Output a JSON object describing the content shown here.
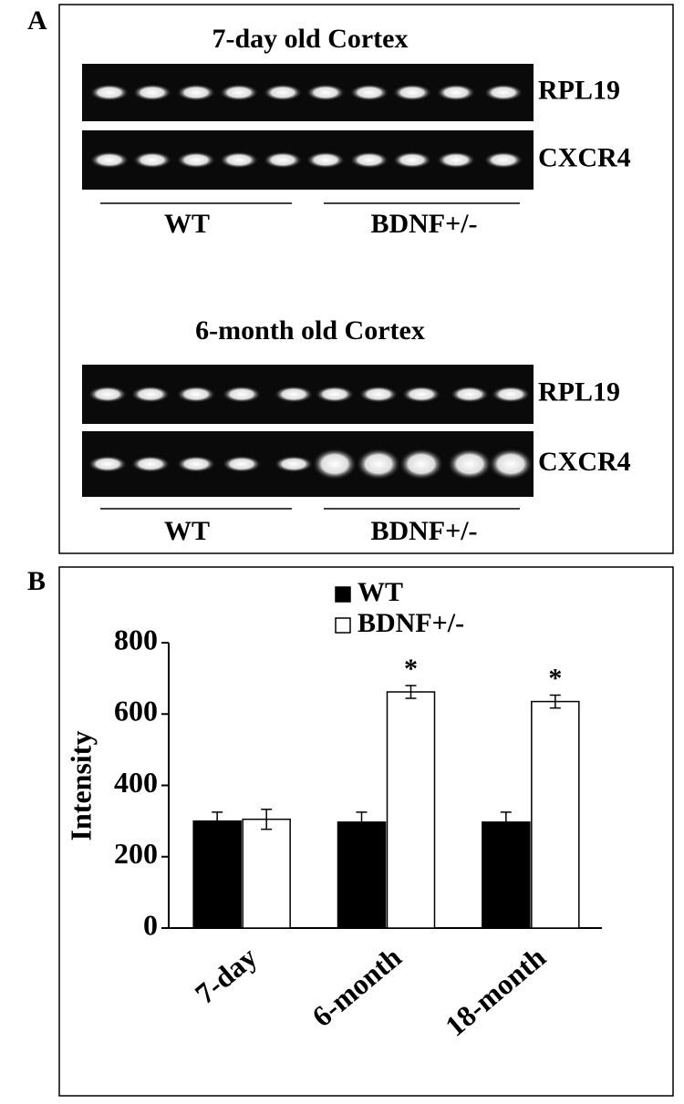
{
  "panel_a": {
    "label": "A",
    "gels": [
      {
        "title": "7-day old Cortex",
        "rows": [
          "RPL19",
          "CXCR4"
        ],
        "groups": [
          "WT",
          "BDNF+/-"
        ]
      },
      {
        "title": "6-month old Cortex",
        "rows": [
          "RPL19",
          "CXCR4"
        ],
        "groups": [
          "WT",
          "BDNF+/-"
        ]
      }
    ]
  },
  "chart_data": {
    "type": "bar",
    "panel_label": "B",
    "y_label": "Intensity",
    "categories": [
      "7-day",
      "6-month",
      "18-month"
    ],
    "series": [
      {
        "name": "WT",
        "color": "#000000",
        "values": [
          300,
          297,
          297
        ],
        "errors": [
          25,
          28,
          28
        ]
      },
      {
        "name": "BDNF+/-",
        "color": "#ffffff",
        "values": [
          305,
          662,
          635
        ],
        "errors": [
          28,
          18,
          18
        ]
      }
    ],
    "annotations": [
      "*",
      "*"
    ],
    "ylim": [
      0,
      800
    ],
    "yticks": [
      0,
      200,
      400,
      600,
      800
    ],
    "grid": false
  }
}
